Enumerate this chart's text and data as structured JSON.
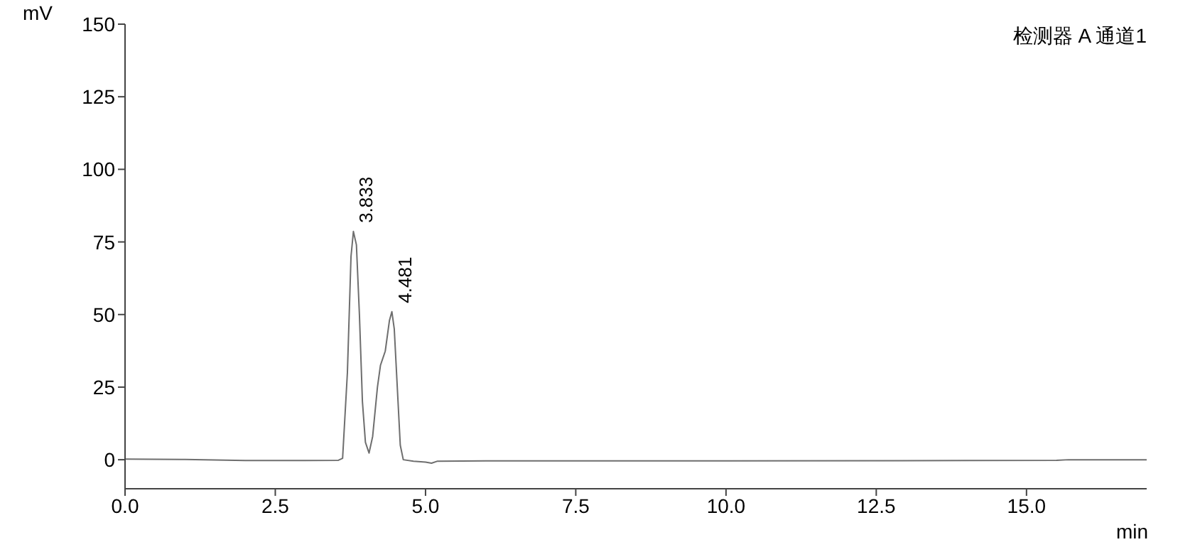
{
  "chart_data": {
    "type": "line",
    "xlabel": "min",
    "ylabel": "mV",
    "annotations": [
      "检测器 A 通道1",
      {
        "text": "3.833",
        "x": 3.833,
        "y": 78.6
      },
      {
        "text": "4.481",
        "x": 4.481,
        "y": 51
      }
    ],
    "x": [
      0,
      1,
      2,
      3,
      3.55,
      3.62,
      3.7,
      3.76,
      3.8,
      3.85,
      3.9,
      3.95,
      4.0,
      4.06,
      4.12,
      4.2,
      4.25,
      4.33,
      4.4,
      4.44,
      4.48,
      4.53,
      4.58,
      4.63,
      4.8,
      5.0,
      5.1,
      5.2,
      6,
      10,
      14,
      15.5,
      15.7,
      17
    ],
    "series": [
      {
        "color": "#6e6e6e",
        "values": [
          0.2,
          0.1,
          -0.3,
          -0.3,
          -0.2,
          0.5,
          30,
          70,
          78.6,
          74,
          50,
          20,
          6,
          2.3,
          8,
          25,
          32.5,
          37.4,
          48,
          51,
          45,
          25,
          5,
          0,
          -0.5,
          -0.8,
          -1.2,
          -0.5,
          -0.4,
          -0.4,
          -0.3,
          -0.2,
          0,
          0
        ]
      }
    ],
    "xlim": [
      0,
      17
    ],
    "ylim": [
      -10,
      150
    ],
    "xticks": [
      {
        "value": 0,
        "label": "0.0"
      },
      {
        "value": 2.5,
        "label": "2.5"
      },
      {
        "value": 5,
        "label": "5.0"
      },
      {
        "value": 7.5,
        "label": "7.5"
      },
      {
        "value": 10,
        "label": "10.0"
      },
      {
        "value": 12.5,
        "label": "12.5"
      },
      {
        "value": 15,
        "label": "15.0"
      }
    ],
    "yticks": [
      0,
      25,
      50,
      75,
      100,
      125,
      150
    ],
    "grid": false,
    "legend": false,
    "marker": "none",
    "line_style": "solid"
  }
}
